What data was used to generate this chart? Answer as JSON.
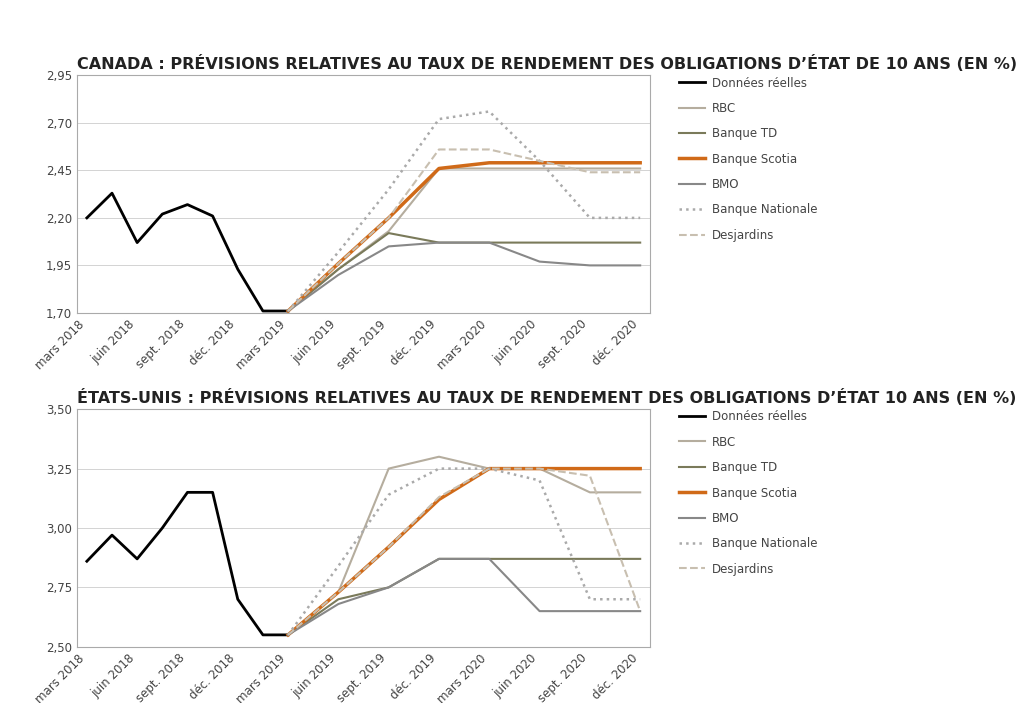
{
  "title1": "CANADA : PRÉVISIONS RELATIVES AU TAUX DE RENDEMENT DES OBLIGATIONS D’ÉTAT DE 10 ANS (EN %)",
  "title2": "ÉTATS-UNIS : PRÉVISIONS RELATIVES AU TAUX DE RENDEMENT DES OBLIGATIONS D’ÉTAT 10 ANS (EN %)",
  "x_labels": [
    "mars 2018",
    "juin 2018",
    "sept. 2018",
    "déc. 2018",
    "mars 2019",
    "juin 2019",
    "sept. 2019",
    "déc. 2019",
    "mars 2020",
    "juin 2020",
    "sept. 2020",
    "déc. 2020"
  ],
  "chart1": {
    "ylim": [
      1.7,
      2.95
    ],
    "yticks": [
      1.7,
      1.95,
      2.2,
      2.45,
      2.7,
      2.95
    ],
    "ytick_labels": [
      "1,70",
      "1,95",
      "2,20",
      "2,45",
      "2,70",
      "2,95"
    ],
    "series": {
      "Données réelles": {
        "x": [
          0,
          0.5,
          1,
          1.5,
          2,
          2.5,
          3,
          3.5,
          4
        ],
        "y": [
          2.2,
          2.33,
          2.07,
          2.22,
          2.27,
          2.21,
          1.93,
          1.71,
          1.71
        ],
        "color": "#000000",
        "linestyle": "solid",
        "linewidth": 2.0
      },
      "RBC": {
        "x": [
          4,
          5,
          6,
          7,
          8,
          9,
          10,
          11
        ],
        "y": [
          1.71,
          1.93,
          2.13,
          2.46,
          2.46,
          2.46,
          2.46,
          2.46
        ],
        "color": "#b5ad9e",
        "linestyle": "solid",
        "linewidth": 1.5
      },
      "Banque TD": {
        "x": [
          4,
          5,
          6,
          7,
          8,
          9,
          10,
          11
        ],
        "y": [
          1.71,
          1.93,
          2.12,
          2.07,
          2.07,
          2.07,
          2.07,
          2.07
        ],
        "color": "#7a7a5a",
        "linestyle": "solid",
        "linewidth": 1.5
      },
      "Banque Scotia": {
        "x": [
          4,
          5,
          6,
          7,
          8,
          9,
          10,
          11
        ],
        "y": [
          1.71,
          1.96,
          2.2,
          2.46,
          2.49,
          2.49,
          2.49,
          2.49
        ],
        "color": "#d06a18",
        "linestyle": "solid",
        "linewidth": 2.5
      },
      "BMO": {
        "x": [
          4,
          5,
          6,
          7,
          8,
          9,
          10,
          11
        ],
        "y": [
          1.71,
          1.9,
          2.05,
          2.07,
          2.07,
          1.97,
          1.95,
          1.95
        ],
        "color": "#888888",
        "linestyle": "solid",
        "linewidth": 1.5
      },
      "Banque Nationale": {
        "x": [
          4,
          5,
          6,
          7,
          8,
          9,
          10,
          11
        ],
        "y": [
          1.71,
          2.02,
          2.35,
          2.72,
          2.76,
          2.5,
          2.2,
          2.2
        ],
        "color": "#aaaaaa",
        "linestyle": "dotted",
        "linewidth": 1.8
      },
      "Desjardins": {
        "x": [
          4,
          5,
          6,
          7,
          8,
          9,
          10,
          11
        ],
        "y": [
          1.71,
          1.96,
          2.2,
          2.56,
          2.56,
          2.5,
          2.44,
          2.44
        ],
        "color": "#c8bfb0",
        "linestyle": "dashed",
        "linewidth": 1.5
      }
    }
  },
  "chart2": {
    "ylim": [
      2.5,
      3.5
    ],
    "yticks": [
      2.5,
      2.75,
      3.0,
      3.25,
      3.5
    ],
    "ytick_labels": [
      "2,50",
      "2,75",
      "3,00",
      "3,25",
      "3,50"
    ],
    "series": {
      "Données réelles": {
        "x": [
          0,
          0.5,
          1,
          1.5,
          2,
          2.5,
          3,
          3.5,
          4
        ],
        "y": [
          2.86,
          2.97,
          2.87,
          3.0,
          3.15,
          3.15,
          2.7,
          2.55,
          2.55
        ],
        "color": "#000000",
        "linestyle": "solid",
        "linewidth": 2.0
      },
      "RBC": {
        "x": [
          4,
          5,
          6,
          7,
          8,
          9,
          10,
          11
        ],
        "y": [
          2.55,
          2.73,
          3.25,
          3.3,
          3.25,
          3.25,
          3.15,
          3.15
        ],
        "color": "#b5ad9e",
        "linestyle": "solid",
        "linewidth": 1.5
      },
      "Banque TD": {
        "x": [
          4,
          5,
          6,
          7,
          8,
          9,
          10,
          11
        ],
        "y": [
          2.55,
          2.7,
          2.75,
          2.87,
          2.87,
          2.87,
          2.87,
          2.87
        ],
        "color": "#7a7a5a",
        "linestyle": "solid",
        "linewidth": 1.5
      },
      "Banque Scotia": {
        "x": [
          4,
          5,
          6,
          7,
          8,
          9,
          10,
          11
        ],
        "y": [
          2.55,
          2.73,
          2.92,
          3.12,
          3.25,
          3.25,
          3.25,
          3.25
        ],
        "color": "#d06a18",
        "linestyle": "solid",
        "linewidth": 2.5
      },
      "BMO": {
        "x": [
          4,
          5,
          6,
          7,
          8,
          9,
          10,
          11
        ],
        "y": [
          2.55,
          2.68,
          2.75,
          2.87,
          2.87,
          2.65,
          2.65,
          2.65
        ],
        "color": "#888888",
        "linestyle": "solid",
        "linewidth": 1.5
      },
      "Banque Nationale": {
        "x": [
          4,
          5,
          6,
          7,
          8,
          9,
          10,
          11
        ],
        "y": [
          2.55,
          2.84,
          3.14,
          3.25,
          3.25,
          3.2,
          2.7,
          2.7
        ],
        "color": "#aaaaaa",
        "linestyle": "dotted",
        "linewidth": 1.8
      },
      "Desjardins": {
        "x": [
          4,
          5,
          6,
          7,
          8,
          9,
          10,
          11
        ],
        "y": [
          2.55,
          2.73,
          2.92,
          3.13,
          3.25,
          3.25,
          3.22,
          2.65
        ],
        "color": "#c8bfb0",
        "linestyle": "dashed",
        "linewidth": 1.5
      }
    }
  },
  "legend_order": [
    "Données réelles",
    "RBC",
    "Banque TD",
    "Banque Scotia",
    "BMO",
    "Banque Nationale",
    "Desjardins"
  ],
  "background_color": "#ffffff",
  "title_fontsize": 11.5,
  "axis_fontsize": 8.5,
  "legend_fontsize": 8.5
}
